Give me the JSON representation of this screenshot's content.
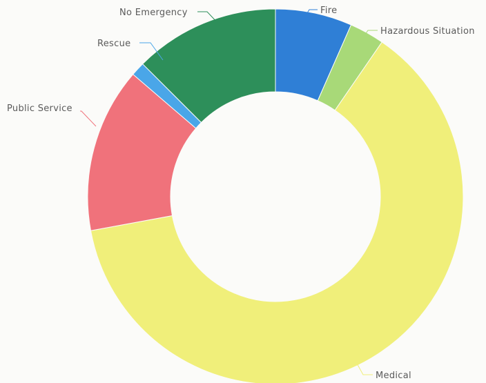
{
  "chart_data": {
    "type": "pie",
    "variant": "donut",
    "title": "",
    "slices": [
      {
        "label": "Fire",
        "value": 6.6,
        "color": "#2f7fd6"
      },
      {
        "label": "Hazardous Situation",
        "value": 3.0,
        "color": "#a8d978"
      },
      {
        "label": "Medical",
        "value": 62.5,
        "color": "#f0ef7a"
      },
      {
        "label": "Public Service",
        "value": 14.2,
        "color": "#f0727b"
      },
      {
        "label": "Rescue",
        "value": 1.2,
        "color": "#4aa6e8"
      },
      {
        "label": "No Emergency",
        "value": 12.5,
        "color": "#2d8f5a"
      }
    ],
    "legend": "none",
    "labels": "outside with leader lines"
  }
}
